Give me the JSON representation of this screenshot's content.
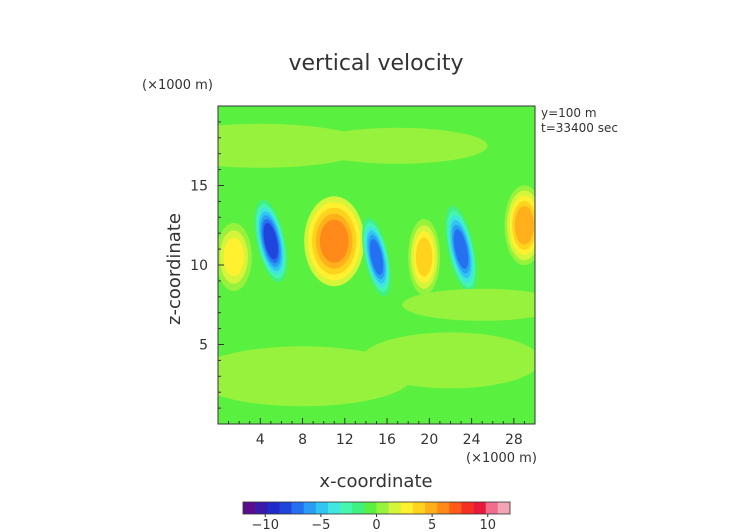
{
  "chart_data": {
    "type": "heatmap",
    "title": "vertical velocity",
    "xlabel": "x-coordinate",
    "ylabel": "z-coordinate",
    "x_unit": "(×1000 m)",
    "y_unit": "(×1000 m)",
    "annotations": [
      "y=100 m",
      "t=33400 sec"
    ],
    "xlim": [
      0,
      30
    ],
    "ylim": [
      0,
      20
    ],
    "x_ticks": [
      4,
      8,
      12,
      16,
      20,
      24,
      28
    ],
    "y_ticks": [
      5,
      10,
      15
    ],
    "colorbar": {
      "range": [
        -12,
        12
      ],
      "ticks": [
        -10,
        -5,
        0,
        5,
        10
      ],
      "tick_labels": [
        "−10",
        "−5",
        "0",
        "5",
        "10"
      ],
      "colors": [
        "#5a0c8c",
        "#3a1aa8",
        "#1f2ac8",
        "#1f45dc",
        "#2470f0",
        "#2a9cf5",
        "#32c4f2",
        "#40e6e0",
        "#45f5b0",
        "#40f080",
        "#5af040",
        "#96f23c",
        "#d4f53a",
        "#fff030",
        "#ffd21e",
        "#ffb01a",
        "#ff8a1a",
        "#ff5a1a",
        "#f53020",
        "#e81a3c",
        "#f06e8c",
        "#f2a4b4"
      ]
    },
    "features": [
      {
        "x": 1.5,
        "z": 10.5,
        "value": 3
      },
      {
        "x": 5.0,
        "z": 11.5,
        "value": -8
      },
      {
        "x": 11.0,
        "z": 11.5,
        "value": 6
      },
      {
        "x": 15.0,
        "z": 10.5,
        "value": -7
      },
      {
        "x": 19.5,
        "z": 10.5,
        "value": 4
      },
      {
        "x": 23.0,
        "z": 11.0,
        "value": -7
      },
      {
        "x": 29.0,
        "z": 12.5,
        "value": 5
      },
      {
        "x": 4.0,
        "z": 17.5,
        "value": 0.7
      },
      {
        "x": 17.0,
        "z": 17.5,
        "value": 0.6
      },
      {
        "x": 8.0,
        "z": 3.0,
        "value": 0.5
      },
      {
        "x": 22.0,
        "z": 4.0,
        "value": 0.5
      },
      {
        "x": 12.0,
        "z": 6.5,
        "value": -0.6
      },
      {
        "x": 25.0,
        "z": 7.5,
        "value": 0.4
      }
    ]
  }
}
